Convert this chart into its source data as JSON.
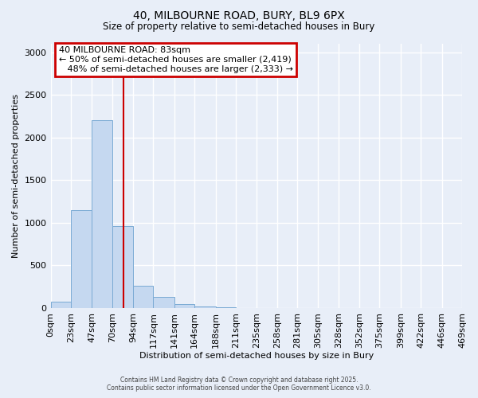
{
  "title": "40, MILBOURNE ROAD, BURY, BL9 6PX",
  "subtitle": "Size of property relative to semi-detached houses in Bury",
  "xlabel": "Distribution of semi-detached houses by size in Bury",
  "ylabel": "Number of semi-detached properties",
  "bar_color": "#c5d8f0",
  "bar_edge_color": "#7aaad4",
  "background_color": "#e8eef8",
  "grid_color": "#ffffff",
  "property_size": 83,
  "smaller_pct": "50%",
  "smaller_count": "2,419",
  "larger_pct": "48%",
  "larger_count": "2,333",
  "bin_edges": [
    0,
    23,
    47,
    70,
    94,
    117,
    141,
    164,
    188,
    211,
    235,
    258,
    281,
    305,
    328,
    352,
    375,
    399,
    422,
    446,
    469
  ],
  "bar_heights": [
    75,
    1150,
    2200,
    960,
    265,
    130,
    50,
    20,
    5,
    0,
    0,
    0,
    0,
    0,
    0,
    0,
    0,
    0,
    0,
    0
  ],
  "ylim": [
    0,
    3100
  ],
  "yticks": [
    0,
    500,
    1000,
    1500,
    2000,
    2500,
    3000
  ],
  "annotation_box_edge_color": "#cc0000",
  "red_line_color": "#cc0000",
  "footer_line1": "Contains HM Land Registry data © Crown copyright and database right 2025.",
  "footer_line2": "Contains public sector information licensed under the Open Government Licence v3.0."
}
